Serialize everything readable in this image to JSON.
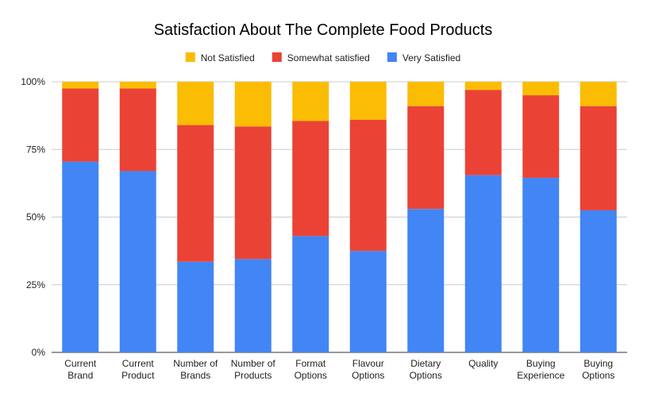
{
  "chart_data": {
    "type": "bar",
    "stacked": true,
    "percent_stacked": true,
    "title": "Satisfaction About The Complete Food Products",
    "xlabel": "",
    "ylabel": "",
    "ylim": [
      0,
      100
    ],
    "yticks": [
      "0%",
      "25%",
      "50%",
      "75%",
      "100%"
    ],
    "grid": true,
    "legend_position": "top-center",
    "categories": [
      [
        "Current",
        "Brand"
      ],
      [
        "Current",
        "Product"
      ],
      [
        "Number of",
        "Brands"
      ],
      [
        "Number of",
        "Products"
      ],
      [
        "Format",
        "Options"
      ],
      [
        "Flavour",
        "Options"
      ],
      [
        "Dietary",
        "Options"
      ],
      [
        "Quality"
      ],
      [
        "Buying",
        "Experience"
      ],
      [
        "Buying",
        "Options"
      ]
    ],
    "series": [
      {
        "name": "Very Satisfied",
        "color": "#4285f4",
        "values": [
          70.5,
          67,
          33.5,
          34.5,
          43,
          37.5,
          53,
          65.5,
          64.5,
          52.5
        ]
      },
      {
        "name": "Somewhat satisfied",
        "color": "#ea4335",
        "values": [
          27,
          30.5,
          50.5,
          49,
          42.5,
          48.5,
          38,
          31.5,
          30.5,
          38.5
        ]
      },
      {
        "name": "Not Satisfied",
        "color": "#fbbc04",
        "values": [
          2.5,
          2.5,
          16,
          16.5,
          14.5,
          14,
          9,
          3,
          5,
          9
        ]
      }
    ],
    "legend_order": [
      "Not Satisfied",
      "Somewhat satisfied",
      "Very Satisfied"
    ]
  }
}
